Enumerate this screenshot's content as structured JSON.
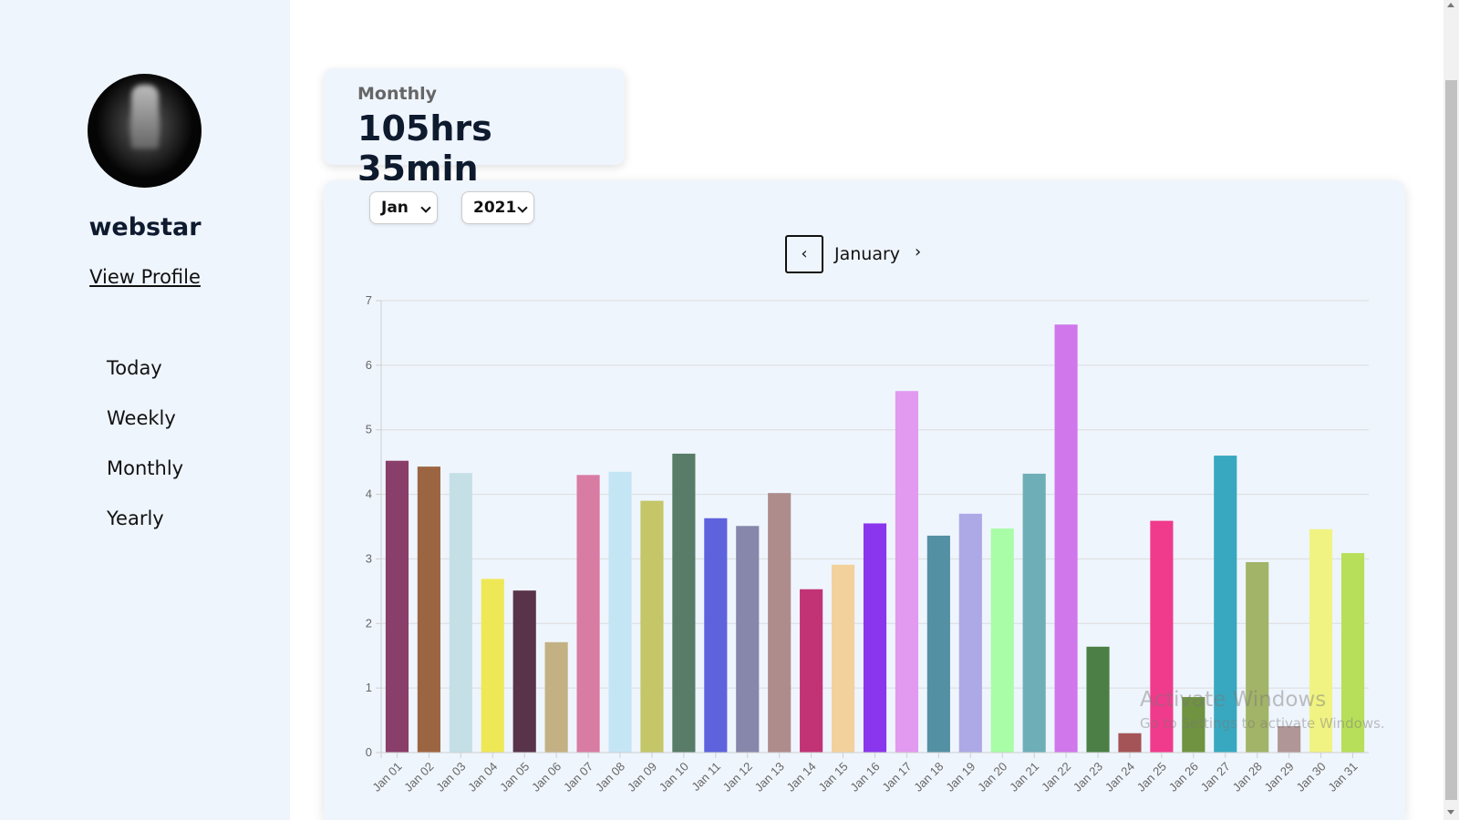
{
  "user": {
    "name": "webstar",
    "view_profile": "View Profile"
  },
  "nav": {
    "items": [
      "Today",
      "Weekly",
      "Monthly",
      "Yearly"
    ]
  },
  "summary": {
    "label": "Monthly",
    "value": "105hrs 35min"
  },
  "filters": {
    "month": "Jan",
    "year": "2021"
  },
  "month_nav": {
    "prev": "‹",
    "current": "January",
    "next": "›"
  },
  "watermark": {
    "line1": "Activate Windows",
    "line2": "Go to Settings to activate Windows."
  },
  "chart_data": {
    "type": "bar",
    "categories": [
      "Jan 01",
      "Jan 02",
      "Jan 03",
      "Jan 04",
      "Jan 05",
      "Jan 06",
      "Jan 07",
      "Jan 08",
      "Jan 09",
      "Jan 10",
      "Jan 11",
      "Jan 12",
      "Jan 13",
      "Jan 14",
      "Jan 15",
      "Jan 16",
      "Jan 17",
      "Jan 18",
      "Jan 19",
      "Jan 20",
      "Jan 21",
      "Jan 22",
      "Jan 23",
      "Jan 24",
      "Jan 25",
      "Jan 26",
      "Jan 27",
      "Jan 28",
      "Jan 29",
      "Jan 30",
      "Jan 31"
    ],
    "values": [
      4.52,
      4.43,
      4.33,
      2.69,
      2.51,
      1.71,
      4.3,
      4.35,
      3.9,
      4.63,
      3.63,
      3.51,
      4.02,
      2.53,
      2.91,
      3.55,
      5.6,
      3.36,
      3.7,
      3.47,
      4.32,
      6.63,
      1.64,
      0.3,
      3.59,
      0.86,
      4.6,
      2.95,
      0.41,
      3.46,
      3.09
    ],
    "colors": [
      "#8a3e6a",
      "#9c6542",
      "#c5dfe6",
      "#efe856",
      "#58334a",
      "#c3b184",
      "#d87ca4",
      "#c4e6f4",
      "#c4c668",
      "#587c67",
      "#5f62dd",
      "#8787ab",
      "#ae8c8c",
      "#c23376",
      "#f3d19c",
      "#8a36ec",
      "#e299f0",
      "#5490a3",
      "#ada8e6",
      "#a8fda6",
      "#6eaeb6",
      "#d077ec",
      "#4b7f46",
      "#a45456",
      "#f03a8c",
      "#6f9340",
      "#38a8c0",
      "#a2b467",
      "#b09696",
      "#f0f382",
      "#b8df5a"
    ],
    "ylim": [
      0,
      7
    ],
    "yticks": [
      0,
      1,
      2,
      3,
      4,
      5,
      6,
      7
    ],
    "grid": true,
    "xlabel": "",
    "ylabel": ""
  }
}
